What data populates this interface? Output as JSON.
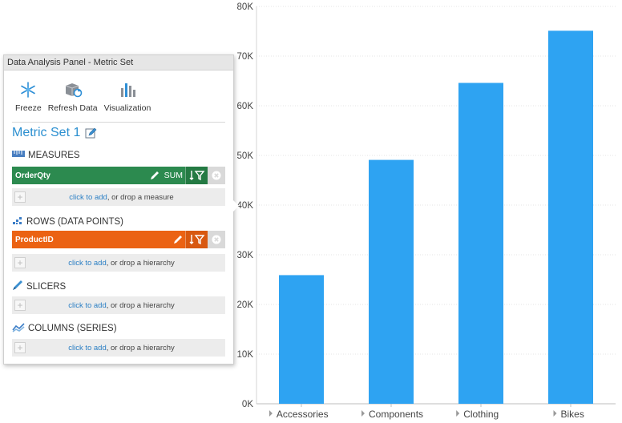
{
  "panel": {
    "title": "Data Analysis Panel - Metric Set",
    "toolbar": [
      {
        "label": "Freeze",
        "icon": "freeze-icon"
      },
      {
        "label": "Refresh Data",
        "icon": "refresh-data-icon"
      },
      {
        "label": "Visualization",
        "icon": "visualization-icon"
      }
    ],
    "metric_set_title": "Metric Set 1",
    "sections": {
      "measures": {
        "label": "MEASURES",
        "icon": "measures-icon"
      },
      "rows": {
        "label": "ROWS (DATA POINTS)",
        "icon": "rows-icon"
      },
      "slicers": {
        "label": "SLICERS",
        "icon": "slicers-icon"
      },
      "columns": {
        "label": "COLUMNS (SERIES)",
        "icon": "columns-icon"
      }
    },
    "measure_item": {
      "name": "OrderQty",
      "aggregation": "SUM",
      "color": "#2c8a4f"
    },
    "row_item": {
      "name": "ProductID",
      "color": "#eb6213"
    },
    "dropzones": {
      "measures": {
        "link": "click to add",
        "rest": ", or drop a measure"
      },
      "rows": {
        "link": "click to add",
        "rest": ", or drop a hierarchy"
      },
      "slicers": {
        "link": "click to add",
        "rest": ", or drop a hierarchy"
      },
      "columns": {
        "link": "click to add",
        "rest": ", or drop a hierarchy"
      }
    }
  },
  "chart_data": {
    "type": "bar",
    "categories": [
      "Accessories",
      "Components",
      "Clothing",
      "Bikes"
    ],
    "values": [
      25900,
      49100,
      64600,
      75100
    ],
    "yticks": [
      "0K",
      "10K",
      "20K",
      "30K",
      "40K",
      "50K",
      "60K",
      "70K",
      "80K"
    ],
    "ylim": [
      0,
      80000
    ],
    "grid": true,
    "bar_color": "#2ea3f2",
    "title": "",
    "xlabel": "",
    "ylabel": ""
  }
}
